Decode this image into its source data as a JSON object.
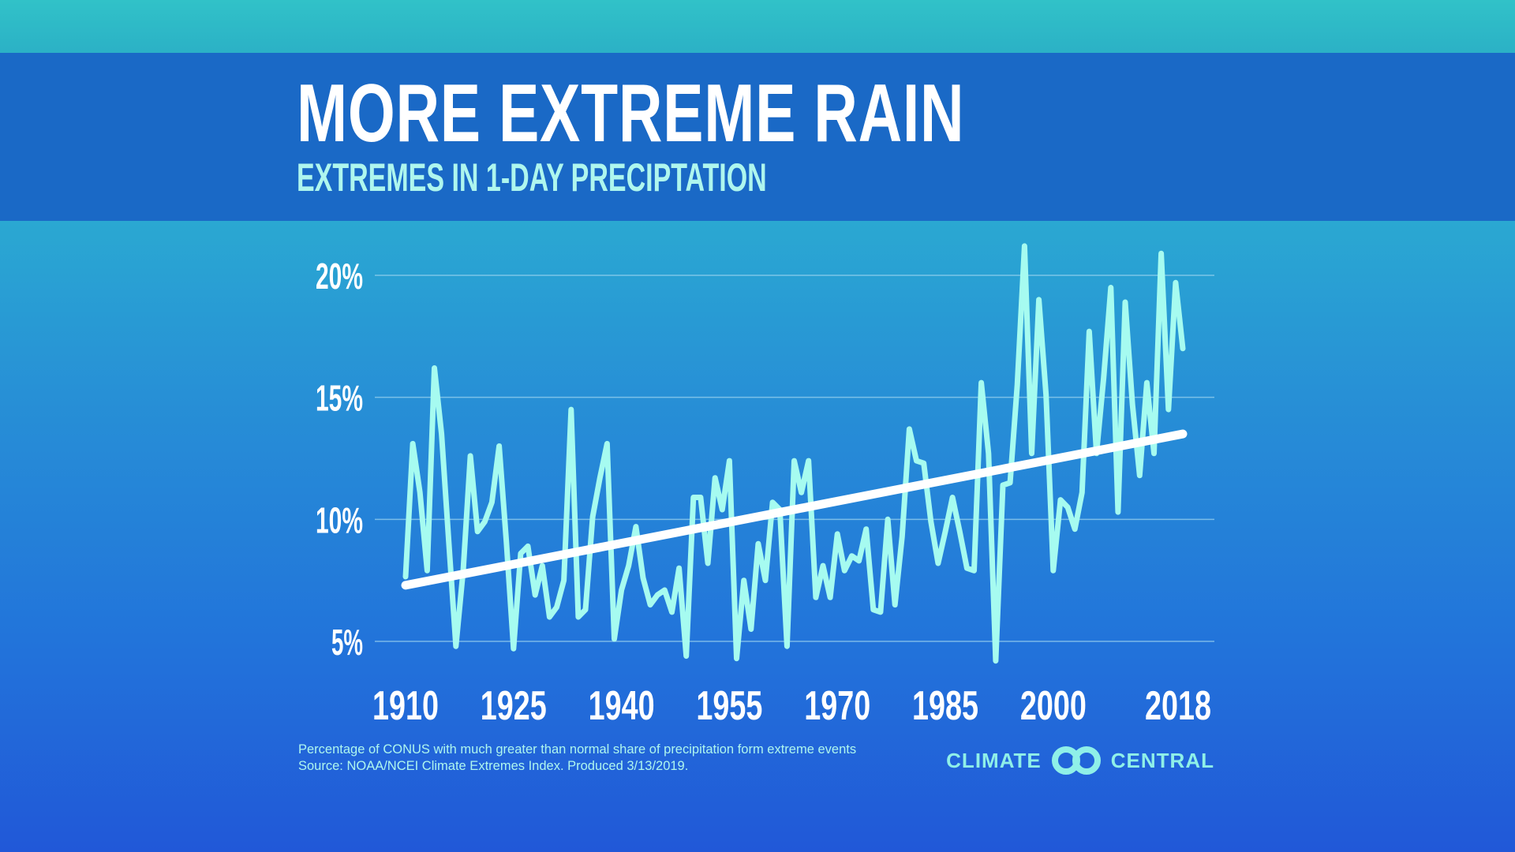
{
  "header": {
    "title": "MORE EXTREME RAIN",
    "subtitle": "EXTREMES IN 1-DAY PRECIPTATION"
  },
  "footer": {
    "note": "Percentage of CONUS with much greater than normal share of precipitation form extreme events",
    "source": "Source: NOAA/NCEI Climate Extremes Index. Produced 3/13/2019."
  },
  "logo": {
    "left": "CLIMATE",
    "right": "CENTRAL",
    "icon": "interlocked-rings-logo"
  },
  "colors": {
    "line": "#a6fbf0",
    "trend": "#ffffff",
    "header": "#1a69c6",
    "grid": "#9fd6f0"
  },
  "chart_data": {
    "type": "line",
    "title": "MORE EXTREME RAIN",
    "subtitle": "EXTREMES IN 1-DAY PRECIPTATION",
    "xlabel": "",
    "ylabel": "",
    "ylim": [
      3.6,
      21.9
    ],
    "xlim": [
      1910,
      2018
    ],
    "grid": true,
    "yticks": [
      {
        "value": 20,
        "label": "20%"
      },
      {
        "value": 15,
        "label": "15%"
      },
      {
        "value": 10,
        "label": "10%"
      },
      {
        "value": 5,
        "label": "5%"
      }
    ],
    "xticks": [
      {
        "value": 1910,
        "label": "1910"
      },
      {
        "value": 1925,
        "label": "1925"
      },
      {
        "value": 1940,
        "label": "1940"
      },
      {
        "value": 1955,
        "label": "1955"
      },
      {
        "value": 1970,
        "label": "1970"
      },
      {
        "value": 1985,
        "label": "1985"
      },
      {
        "value": 2000,
        "label": "2000"
      },
      {
        "value": 2018,
        "label": "2018"
      }
    ],
    "x_start": 1910,
    "values": [
      7.65,
      13.1,
      11.1,
      7.9,
      16.2,
      13.5,
      9.1,
      4.8,
      7.9,
      12.6,
      9.5,
      9.9,
      10.7,
      13.0,
      9.1,
      4.7,
      8.6,
      8.9,
      6.9,
      8.1,
      6.0,
      6.4,
      7.5,
      14.5,
      6.0,
      6.3,
      10.1,
      11.7,
      13.1,
      5.1,
      7.1,
      8.1,
      9.7,
      7.6,
      6.5,
      6.9,
      7.1,
      6.2,
      8.0,
      4.4,
      10.9,
      10.9,
      8.2,
      11.7,
      10.4,
      12.4,
      4.3,
      7.5,
      5.5,
      9.0,
      7.5,
      10.7,
      10.4,
      4.8,
      12.4,
      11.1,
      12.4,
      6.8,
      8.1,
      6.8,
      9.4,
      7.9,
      8.5,
      8.3,
      9.6,
      6.3,
      6.2,
      10.0,
      6.5,
      9.3,
      13.7,
      12.4,
      12.3,
      9.9,
      8.2,
      9.5,
      10.9,
      9.5,
      8.0,
      7.9,
      15.6,
      12.7,
      4.2,
      11.4,
      11.5,
      15.5,
      21.2,
      12.7,
      19.0,
      15.1,
      7.9,
      10.8,
      10.5,
      9.6,
      11.1,
      17.7,
      12.7,
      15.8,
      19.5,
      10.3,
      18.9,
      14.7,
      11.8,
      15.6,
      12.7,
      20.9,
      14.5,
      19.7,
      17.0
    ],
    "trend": {
      "start": [
        1910,
        7.3
      ],
      "end": [
        2018,
        13.5
      ]
    }
  }
}
